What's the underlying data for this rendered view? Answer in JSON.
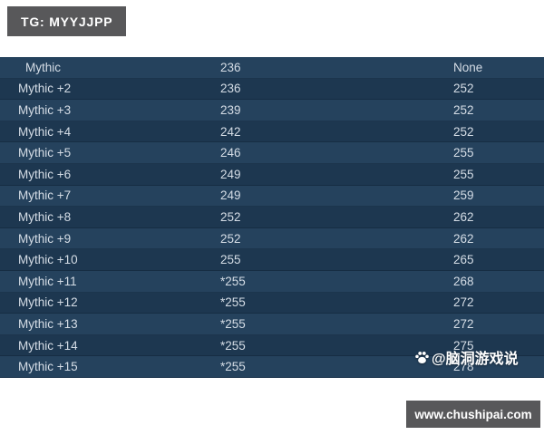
{
  "badge": {
    "label": "TG: MYYJJPP"
  },
  "table": {
    "rows": [
      {
        "level": "Mythic",
        "end_of_run": "236",
        "weekly": "None"
      },
      {
        "level": "Mythic +2",
        "end_of_run": "236",
        "weekly": "252"
      },
      {
        "level": "Mythic +3",
        "end_of_run": "239",
        "weekly": "252"
      },
      {
        "level": "Mythic +4",
        "end_of_run": "242",
        "weekly": "252"
      },
      {
        "level": "Mythic +5",
        "end_of_run": "246",
        "weekly": "255"
      },
      {
        "level": "Mythic +6",
        "end_of_run": "249",
        "weekly": "255"
      },
      {
        "level": "Mythic +7",
        "end_of_run": "249",
        "weekly": "259"
      },
      {
        "level": "Mythic +8",
        "end_of_run": "252",
        "weekly": "262"
      },
      {
        "level": "Mythic +9",
        "end_of_run": "252",
        "weekly": "262"
      },
      {
        "level": "Mythic +10",
        "end_of_run": "255",
        "weekly": "265"
      },
      {
        "level": "Mythic +11",
        "end_of_run": "*255",
        "weekly": "268"
      },
      {
        "level": "Mythic +12",
        "end_of_run": "*255",
        "weekly": "272"
      },
      {
        "level": "Mythic +13",
        "end_of_run": "*255",
        "weekly": "272"
      },
      {
        "level": "Mythic +14",
        "end_of_run": "*255",
        "weekly": "275"
      },
      {
        "level": "Mythic +15",
        "end_of_run": "*255",
        "weekly": "278"
      }
    ]
  },
  "watermark": {
    "handle": "@脑洞游戏说",
    "icon": "paw-icon"
  },
  "site_button": {
    "label": "www.chushipai.com"
  },
  "colors": {
    "page_bg": "#ffffff",
    "row_odd": "#25425d",
    "row_even": "#1d3750",
    "row_text": "#d5dde6",
    "badge_bg": "#58585a"
  }
}
